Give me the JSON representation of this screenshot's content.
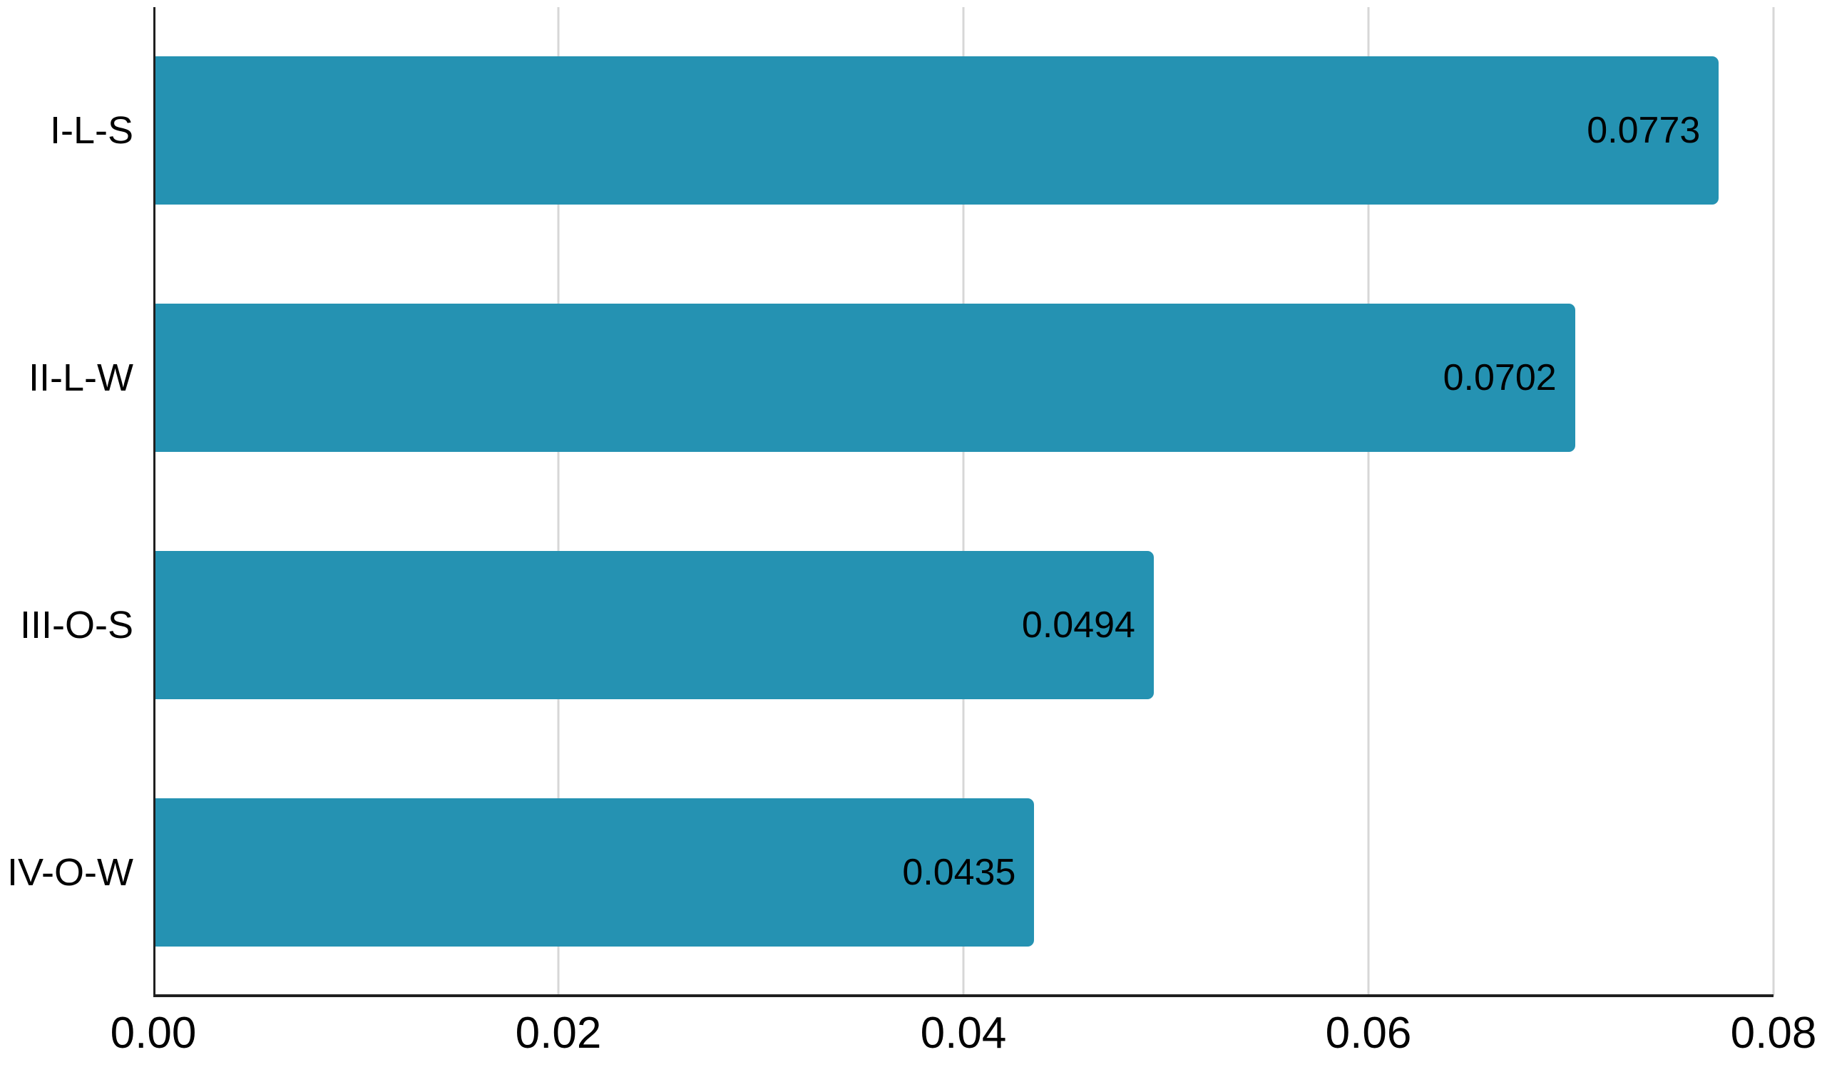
{
  "chart_data": {
    "type": "bar",
    "orientation": "horizontal",
    "title": "",
    "xlabel": "",
    "ylabel": "",
    "categories": [
      "I-L-S",
      "II-L-W",
      "III-O-S",
      "IV-O-W"
    ],
    "values": [
      0.0773,
      0.0702,
      0.0494,
      0.0435
    ],
    "value_labels": [
      "0.0773",
      "0.0702",
      "0.0494",
      "0.0435"
    ],
    "value_label_position": "inside-end",
    "xlim": [
      0,
      0.08
    ],
    "x_ticks": [
      {
        "value": 0.0,
        "label": "0.00"
      },
      {
        "value": 0.02,
        "label": "0.02"
      },
      {
        "value": 0.04,
        "label": "0.04"
      },
      {
        "value": 0.06,
        "label": "0.06"
      },
      {
        "value": 0.08,
        "label": "0.08"
      }
    ],
    "grid": "vertical",
    "legend": "none",
    "colors": {
      "bar": "#2592b2",
      "gridline": "#d7d7d7",
      "axis": "#1f1f1f",
      "text": "#000000",
      "background": "#ffffff"
    }
  }
}
